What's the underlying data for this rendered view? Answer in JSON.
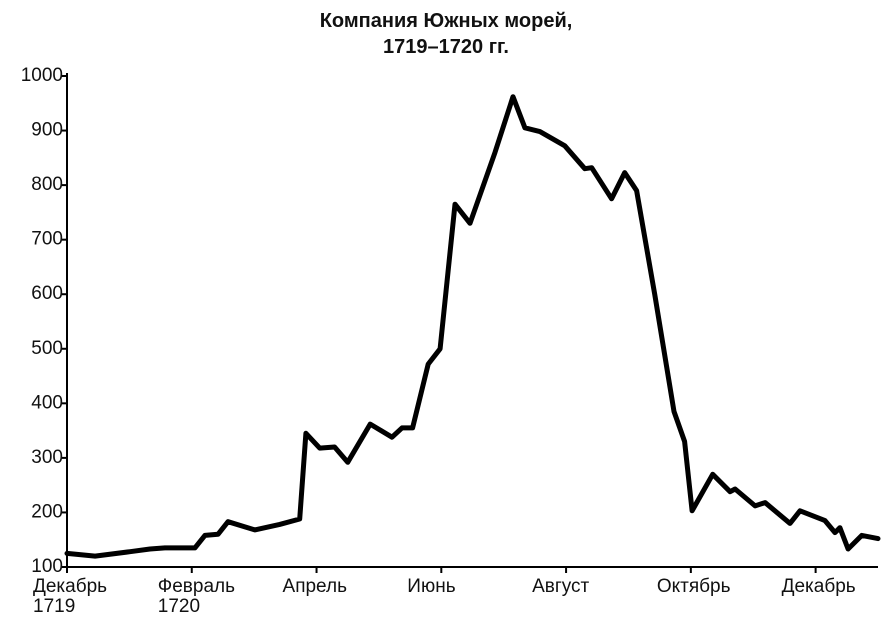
{
  "chart_data": {
    "type": "line",
    "title": "Компания Южных морей,\n1719–1720 гг.",
    "x": [
      0,
      0.45,
      1.01,
      1.33,
      1.57,
      2.05,
      2.21,
      2.42,
      2.58,
      3.01,
      3.41,
      3.73,
      3.83,
      4.05,
      4.29,
      4.5,
      4.86,
      5.21,
      5.37,
      5.54,
      5.79,
      5.98,
      6.22,
      6.46,
      6.86,
      7.15,
      7.34,
      7.58,
      7.98,
      8.3,
      8.41,
      8.73,
      8.94,
      9.13,
      9.42,
      9.73,
      9.9,
      10.02,
      10.35,
      10.63,
      10.71,
      11.03,
      11.19,
      11.59,
      11.75,
      12.15,
      12.31,
      12.39,
      12.52,
      12.74,
      13
    ],
    "values": [
      125,
      120,
      128,
      133,
      135,
      135,
      158,
      160,
      183,
      168,
      178,
      188,
      345,
      318,
      320,
      292,
      362,
      338,
      355,
      355,
      472,
      500,
      765,
      730,
      860,
      962,
      905,
      898,
      872,
      830,
      832,
      775,
      823,
      790,
      600,
      385,
      330,
      203,
      270,
      238,
      243,
      212,
      218,
      180,
      203,
      185,
      163,
      172,
      133,
      158,
      152
    ],
    "color": "#000000",
    "xlim": [
      0,
      13
    ],
    "xticks": [
      {
        "value": 0,
        "label": "Декабрь\n1719"
      },
      {
        "value": 2,
        "label": "Февраль\n1720"
      },
      {
        "value": 4,
        "label": "Апрель"
      },
      {
        "value": 6,
        "label": "Июнь"
      },
      {
        "value": 8,
        "label": "Август"
      },
      {
        "value": 10,
        "label": "Октябрь"
      },
      {
        "value": 12,
        "label": "Декабрь"
      }
    ],
    "ylim": [
      100,
      1000
    ],
    "yticks": [
      100,
      200,
      300,
      400,
      500,
      600,
      700,
      800,
      900,
      1000
    ],
    "grid": false
  }
}
